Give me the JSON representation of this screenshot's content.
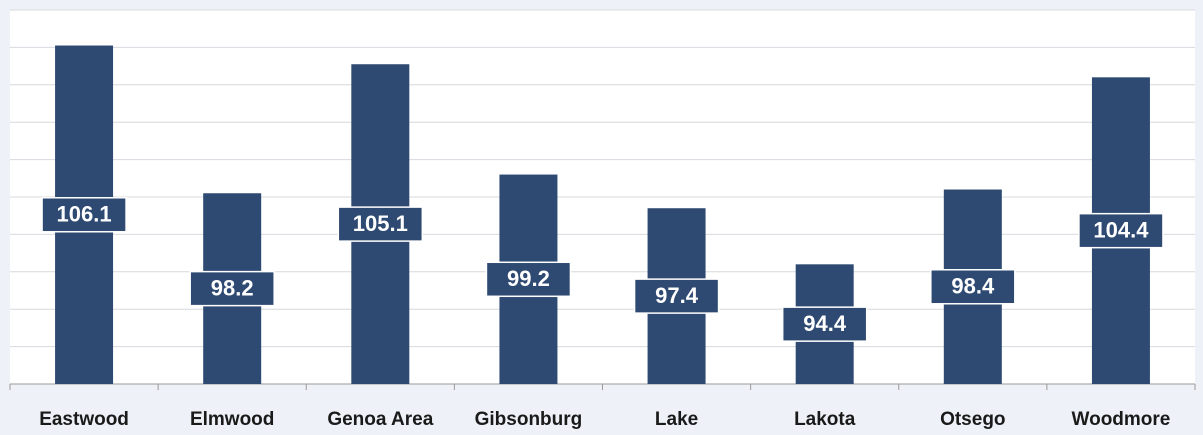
{
  "chart_data": {
    "type": "bar",
    "categories": [
      "Eastwood",
      "Elmwood",
      "Genoa Area",
      "Gibsonburg",
      "Lake",
      "Lakota",
      "Otsego",
      "Woodmore"
    ],
    "values": [
      106.1,
      98.2,
      105.1,
      99.2,
      97.4,
      94.4,
      98.4,
      104.4
    ],
    "color": "#2e4a72",
    "ylim": [
      88,
      108
    ],
    "yticks": [
      88,
      90,
      92,
      94,
      96,
      98,
      100,
      102,
      104,
      106,
      108
    ],
    "grid": true
  }
}
